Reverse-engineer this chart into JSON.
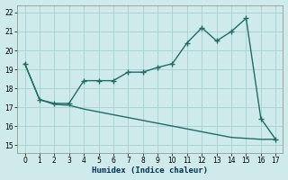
{
  "x": [
    0,
    1,
    2,
    3,
    4,
    5,
    6,
    7,
    8,
    9,
    10,
    11,
    12,
    13,
    14,
    15,
    16,
    17
  ],
  "y_upper": [
    19.3,
    17.4,
    17.2,
    17.2,
    18.4,
    18.4,
    18.4,
    18.85,
    18.85,
    19.1,
    19.3,
    20.4,
    21.2,
    20.5,
    21.0,
    21.7,
    16.4,
    15.3
  ],
  "y_lower": [
    19.3,
    17.4,
    17.15,
    17.1,
    16.9,
    16.75,
    16.6,
    16.45,
    16.3,
    16.15,
    16.0,
    15.85,
    15.7,
    15.55,
    15.4,
    15.35,
    15.3,
    15.3
  ],
  "color": "#1d6e64",
  "bg_color": "#ceeaea",
  "grid_color": "#aad4d4",
  "xlabel": "Humidex (Indice chaleur)",
  "xlim": [
    -0.5,
    17.5
  ],
  "ylim": [
    14.6,
    22.4
  ],
  "yticks": [
    15,
    16,
    17,
    18,
    19,
    20,
    21,
    22
  ],
  "xticks": [
    0,
    1,
    2,
    3,
    4,
    5,
    6,
    7,
    8,
    9,
    10,
    11,
    12,
    13,
    14,
    15,
    16,
    17
  ],
  "markersize": 2.5,
  "linewidth": 1.0
}
